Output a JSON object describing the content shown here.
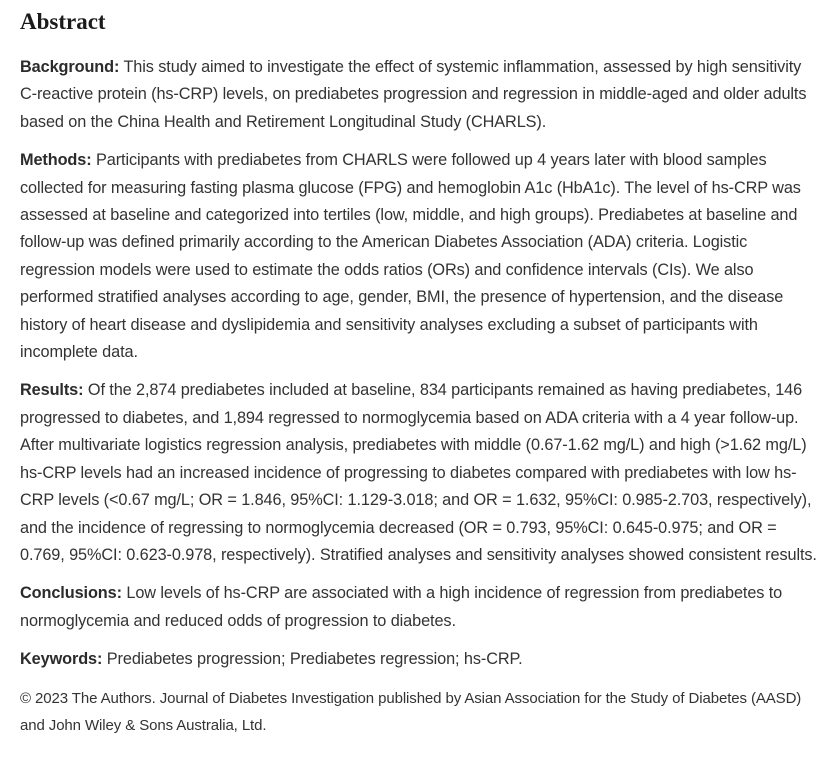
{
  "abstract": {
    "heading": "Abstract",
    "sections": [
      {
        "label": "Background:",
        "text": "This study aimed to investigate the effect of systemic inflammation, assessed by high sensitivity C-reactive protein (hs-CRP) levels, on prediabetes progression and regression in middle-aged and older adults based on the China Health and Retirement Longitudinal Study (CHARLS)."
      },
      {
        "label": "Methods:",
        "text": "Participants with prediabetes from CHARLS were followed up 4 years later with blood samples collected for measuring fasting plasma glucose (FPG) and hemoglobin A1c (HbA1c). The level of hs-CRP was assessed at baseline and categorized into tertiles (low, middle, and high groups). Prediabetes at baseline and follow-up was defined primarily according to the American Diabetes Association (ADA) criteria. Logistic regression models were used to estimate the odds ratios (ORs) and confidence intervals (CIs). We also performed stratified analyses according to age, gender, BMI, the presence of hypertension, and the disease history of heart disease and dyslipidemia and sensitivity analyses excluding a subset of participants with incomplete data."
      },
      {
        "label": "Results:",
        "text": "Of the 2,874 prediabetes included at baseline, 834 participants remained as having prediabetes, 146 progressed to diabetes, and 1,894 regressed to normoglycemia based on ADA criteria with a 4 year follow-up. After multivariate logistics regression analysis, prediabetes with middle (0.67-1.62 mg/L) and high (>1.62 mg/L) hs-CRP levels had an increased incidence of progressing to diabetes compared with prediabetes with low hs-CRP levels (<0.67 mg/L; OR = 1.846, 95%CI: 1.129-3.018; and OR = 1.632, 95%CI: 0.985-2.703, respectively), and the incidence of regressing to normoglycemia decreased (OR = 0.793, 95%CI: 0.645-0.975; and OR = 0.769, 95%CI: 0.623-0.978, respectively). Stratified analyses and sensitivity analyses showed consistent results."
      },
      {
        "label": "Conclusions:",
        "text": "Low levels of hs-CRP are associated with a high incidence of regression from prediabetes to normoglycemia and reduced odds of progression to diabetes."
      },
      {
        "label": "Keywords:",
        "text": "Prediabetes progression; Prediabetes regression; hs-CRP."
      }
    ],
    "copyright": "© 2023 The Authors. Journal of Diabetes Investigation published by Asian Association for the Study of Diabetes (AASD) and John Wiley & Sons Australia, Ltd."
  },
  "colors": {
    "background": "#ffffff",
    "body_text": "#333333",
    "heading_text": "#1b1b1b"
  }
}
